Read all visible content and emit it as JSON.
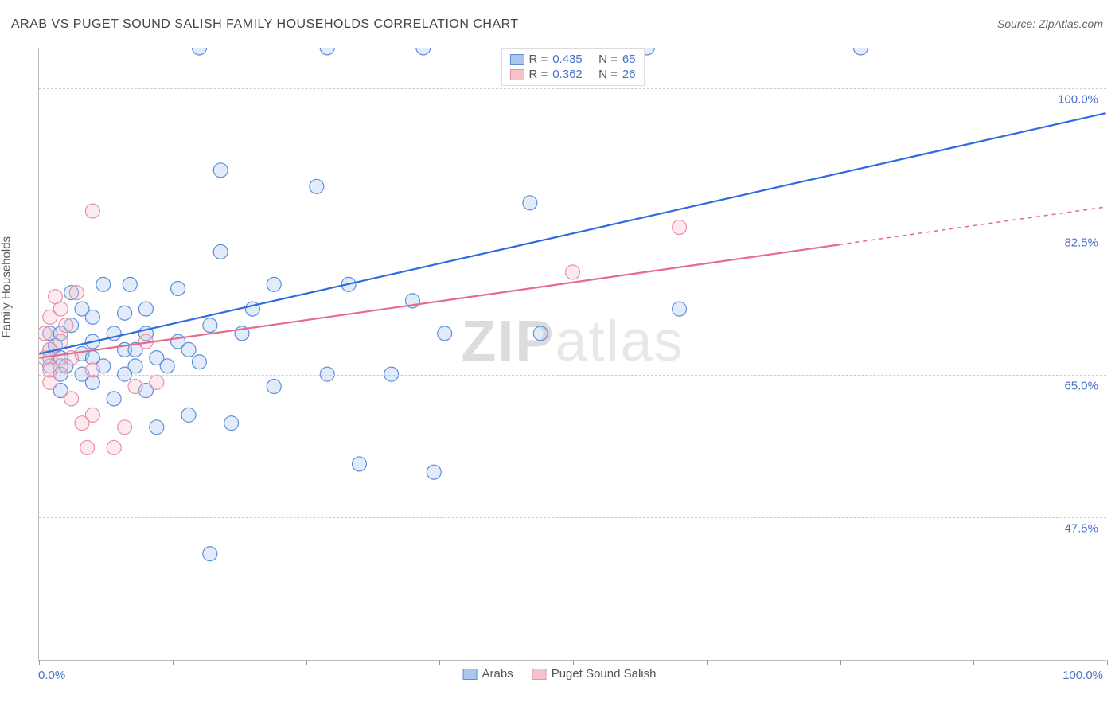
{
  "title": "ARAB VS PUGET SOUND SALISH FAMILY HOUSEHOLDS CORRELATION CHART",
  "source_label": "Source: ZipAtlas.com",
  "y_axis_label": "Family Households",
  "watermark": {
    "bold": "ZIP",
    "light": "atlas"
  },
  "chart": {
    "type": "scatter",
    "background_color": "#ffffff",
    "grid_color": "#cccccc",
    "grid_dash": "4,4",
    "axis_color": "#bbbbbb",
    "text_color": "#555555",
    "value_color": "#4a72c9",
    "title_fontsize": 16,
    "label_fontsize": 15,
    "tick_fontsize": 15,
    "xlim": [
      0,
      100
    ],
    "ylim": [
      30,
      105
    ],
    "x_ticks": [
      0,
      12.5,
      25,
      37.5,
      50,
      62.5,
      75,
      87.5,
      100
    ],
    "x_tick_labels": {
      "0": "0.0%",
      "100": "100.0%"
    },
    "y_gridlines": [
      47.5,
      65.0,
      82.5,
      100.0
    ],
    "y_tick_labels": [
      "47.5%",
      "65.0%",
      "82.5%",
      "100.0%"
    ],
    "marker_radius": 9,
    "marker_stroke_width": 1.2,
    "marker_fill_opacity": 0.35,
    "line_width": 2.2,
    "series": [
      {
        "name": "Arabs",
        "color_fill": "#a9c6ed",
        "color_stroke": "#5d8fd6",
        "line_color": "#2e6be0",
        "R": "0.435",
        "N": "65",
        "regression": {
          "x1": 0,
          "y1": 67.5,
          "x2": 100,
          "y2": 97.0,
          "solid_until_x": 100
        },
        "points": [
          [
            1,
            66
          ],
          [
            1,
            67
          ],
          [
            1,
            68
          ],
          [
            1,
            70
          ],
          [
            1.5,
            68.5
          ],
          [
            2,
            63
          ],
          [
            2,
            65
          ],
          [
            2,
            67
          ],
          [
            2,
            70
          ],
          [
            2.5,
            66
          ],
          [
            3,
            71
          ],
          [
            3,
            75
          ],
          [
            4,
            65
          ],
          [
            4,
            67.5
          ],
          [
            4,
            73
          ],
          [
            5,
            64
          ],
          [
            5,
            67
          ],
          [
            5,
            69
          ],
          [
            5,
            72
          ],
          [
            6,
            66
          ],
          [
            6,
            76
          ],
          [
            7,
            62
          ],
          [
            7,
            70
          ],
          [
            8,
            65
          ],
          [
            8,
            68
          ],
          [
            8,
            72.5
          ],
          [
            8.5,
            76
          ],
          [
            9,
            68
          ],
          [
            9,
            66
          ],
          [
            10,
            63
          ],
          [
            10,
            70
          ],
          [
            10,
            73
          ],
          [
            11,
            58.5
          ],
          [
            11,
            67
          ],
          [
            12,
            66
          ],
          [
            13,
            69
          ],
          [
            13,
            75.5
          ],
          [
            14,
            60
          ],
          [
            14,
            68
          ],
          [
            15,
            105
          ],
          [
            15,
            66.5
          ],
          [
            16,
            71
          ],
          [
            16,
            43
          ],
          [
            17,
            90
          ],
          [
            17,
            80
          ],
          [
            18,
            59
          ],
          [
            19,
            70
          ],
          [
            20,
            73
          ],
          [
            22,
            63.5
          ],
          [
            22,
            76
          ],
          [
            26,
            88
          ],
          [
            27,
            65
          ],
          [
            27,
            105
          ],
          [
            29,
            76
          ],
          [
            30,
            54
          ],
          [
            33,
            65
          ],
          [
            35,
            74
          ],
          [
            36,
            105
          ],
          [
            37,
            53
          ],
          [
            38,
            70
          ],
          [
            46,
            86
          ],
          [
            47,
            70
          ],
          [
            57,
            105
          ],
          [
            60,
            73
          ],
          [
            77,
            105
          ]
        ]
      },
      {
        "name": "Puget Sound Salish",
        "color_fill": "#f5c2ce",
        "color_stroke": "#e890a7",
        "line_color": "#e86a8a",
        "R": "0.362",
        "N": "26",
        "regression": {
          "x1": 0,
          "y1": 67.0,
          "x2": 100,
          "y2": 85.5,
          "solid_until_x": 75
        },
        "points": [
          [
            0.5,
            67
          ],
          [
            0.5,
            70
          ],
          [
            1,
            64
          ],
          [
            1,
            65.5
          ],
          [
            1,
            68
          ],
          [
            1,
            72
          ],
          [
            1.5,
            74.5
          ],
          [
            2,
            66
          ],
          [
            2,
            69
          ],
          [
            2,
            73
          ],
          [
            2.5,
            71
          ],
          [
            3,
            62
          ],
          [
            3,
            67
          ],
          [
            3.5,
            75
          ],
          [
            4,
            59
          ],
          [
            4.5,
            56
          ],
          [
            5,
            60
          ],
          [
            5,
            65.5
          ],
          [
            5,
            85
          ],
          [
            7,
            56
          ],
          [
            8,
            58.5
          ],
          [
            9,
            63.5
          ],
          [
            10,
            69
          ],
          [
            11,
            64
          ],
          [
            50,
            77.5
          ],
          [
            60,
            83
          ]
        ]
      }
    ]
  },
  "legend_top": {
    "border_color": "#dddddd",
    "rows": [
      {
        "swatch_fill": "#a9c6ed",
        "swatch_stroke": "#5d8fd6",
        "r_label": "R =",
        "r_val": "0.435",
        "n_label": "N =",
        "n_val": "65"
      },
      {
        "swatch_fill": "#f5c2ce",
        "swatch_stroke": "#e890a7",
        "r_label": "R =",
        "r_val": "0.362",
        "n_label": "N =",
        "n_val": "26"
      }
    ]
  },
  "legend_bottom": {
    "items": [
      {
        "swatch_fill": "#a9c6ed",
        "swatch_stroke": "#5d8fd6",
        "label": "Arabs"
      },
      {
        "swatch_fill": "#f5c2ce",
        "swatch_stroke": "#e890a7",
        "label": "Puget Sound Salish"
      }
    ]
  }
}
